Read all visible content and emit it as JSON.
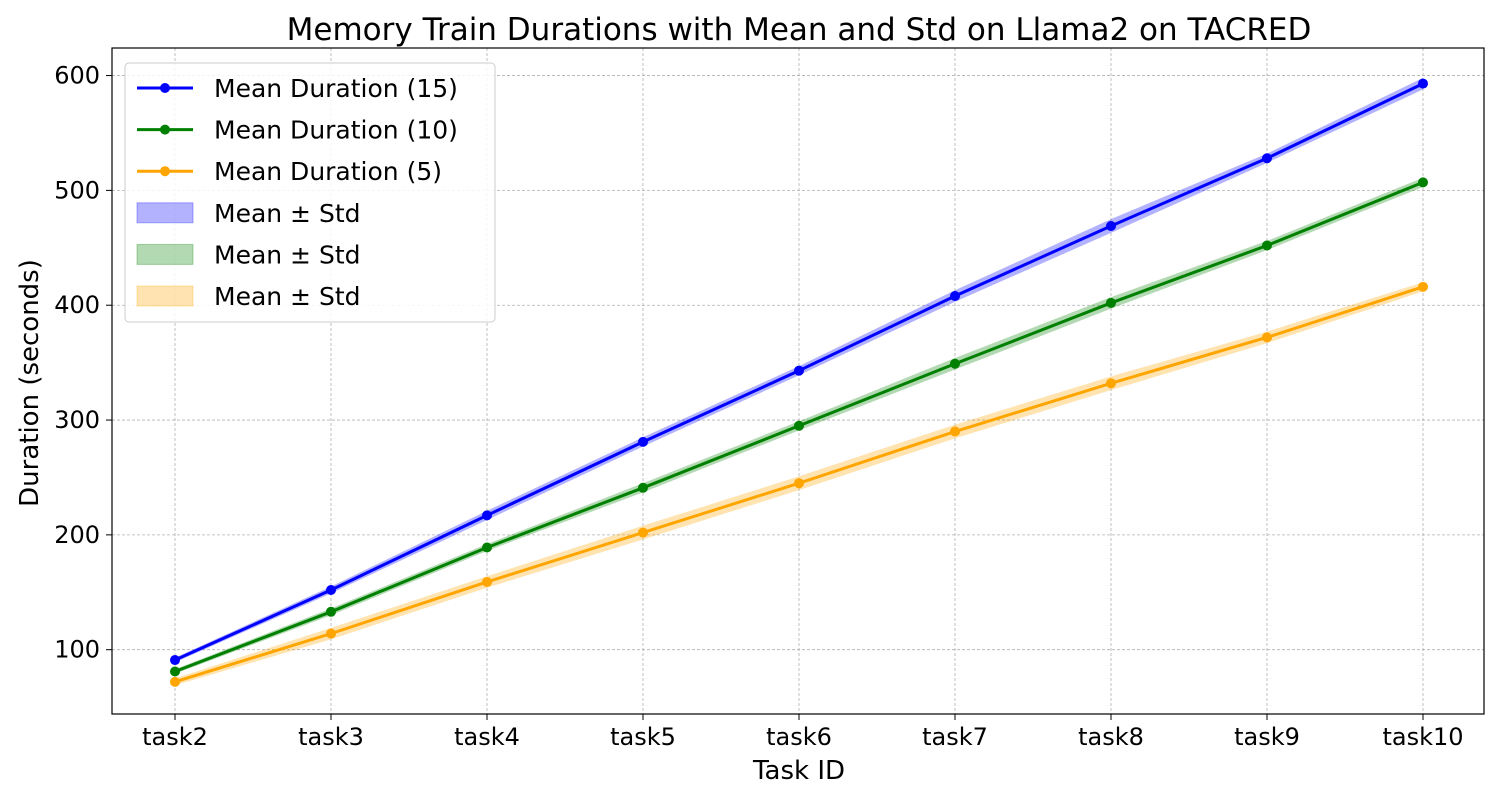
{
  "chart_data": {
    "type": "line",
    "title": "Memory Train Durations with Mean and Std on Llama2 on TACRED",
    "xlabel": "Task ID",
    "ylabel": "Duration (seconds)",
    "categories": [
      "task2",
      "task3",
      "task4",
      "task5",
      "task6",
      "task7",
      "task8",
      "task9",
      "task10"
    ],
    "ylim": [
      44,
      624
    ],
    "yticks": [
      100,
      200,
      300,
      400,
      500,
      600
    ],
    "grid": true,
    "legend_position": "top-left",
    "series": [
      {
        "name": "Mean Duration (15)",
        "band_label": "Mean ± Std",
        "color": "#0000ff",
        "values": [
          91,
          152,
          217,
          281,
          343,
          408,
          469,
          528,
          593
        ],
        "std": [
          2,
          3,
          4,
          4,
          4,
          5,
          6,
          4,
          5
        ]
      },
      {
        "name": "Mean Duration (10)",
        "band_label": "Mean ± Std",
        "color": "#008000",
        "values": [
          81,
          133,
          189,
          241,
          295,
          349,
          402,
          452,
          507
        ],
        "std": [
          2,
          3,
          3,
          4,
          4,
          5,
          5,
          4,
          4
        ]
      },
      {
        "name": "Mean Duration (5)",
        "band_label": "Mean ± Std",
        "color": "#ffa500",
        "values": [
          72,
          114,
          159,
          202,
          245,
          290,
          332,
          372,
          416
        ],
        "std": [
          3,
          5,
          5,
          6,
          6,
          6,
          6,
          5,
          4
        ]
      }
    ]
  }
}
